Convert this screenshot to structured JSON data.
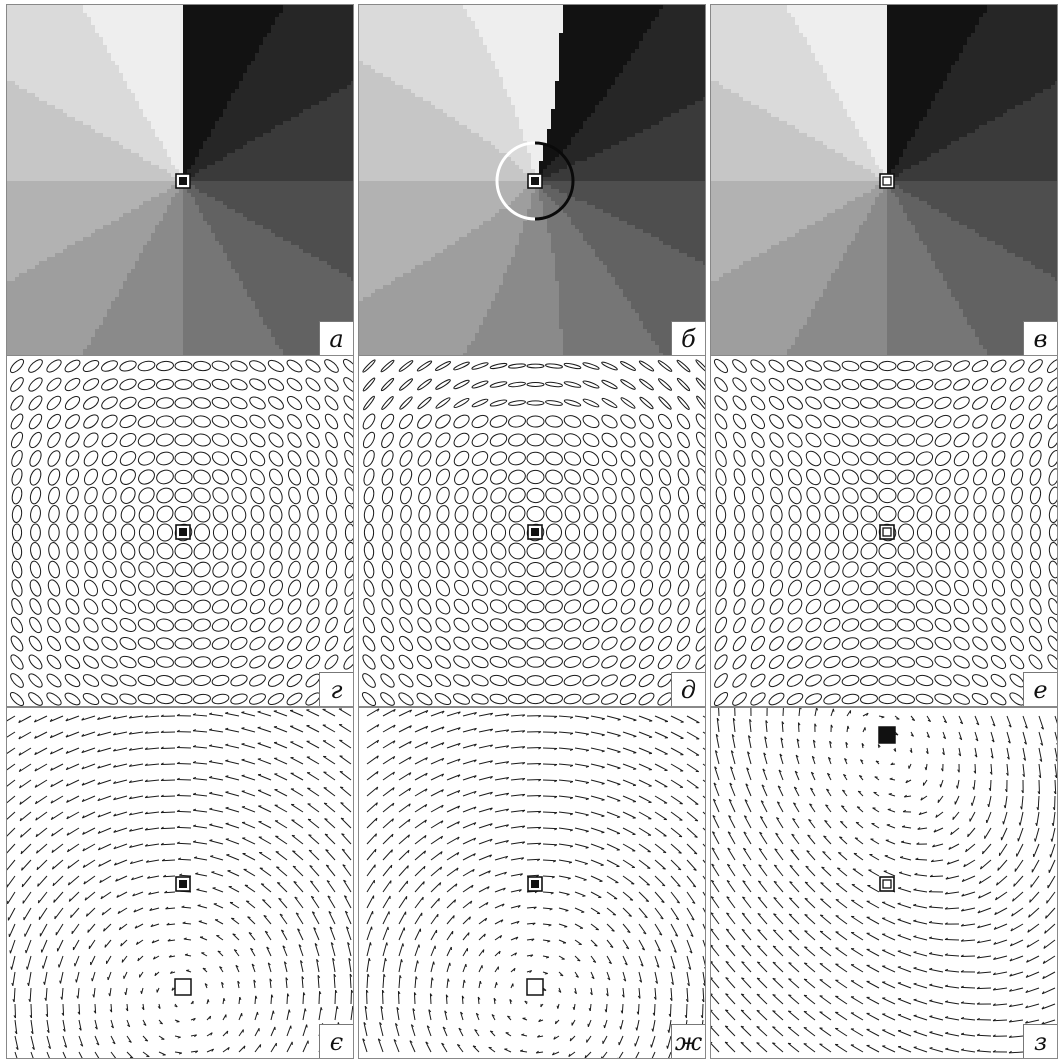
{
  "figure": {
    "panels": [
      {
        "id": "a",
        "label": "а",
        "kind": "phase",
        "variant": "a"
      },
      {
        "id": "b",
        "label": "б",
        "kind": "phase",
        "variant": "b"
      },
      {
        "id": "v",
        "label": "в",
        "kind": "phase",
        "variant": "v"
      },
      {
        "id": "g",
        "label": "г",
        "kind": "ellipse",
        "variant": "g"
      },
      {
        "id": "d",
        "label": "д",
        "kind": "ellipse",
        "variant": "d"
      },
      {
        "id": "e",
        "label": "е",
        "kind": "ellipse",
        "variant": "e"
      },
      {
        "id": "ye",
        "label": "є",
        "kind": "vector",
        "variant": "ye"
      },
      {
        "id": "zh",
        "label": "ж",
        "kind": "vector",
        "variant": "zh"
      },
      {
        "id": "z",
        "label": "з",
        "kind": "vector",
        "variant": "z"
      }
    ],
    "colors": {
      "background": "#ffffff",
      "ink": "#111111",
      "phase_dark": "#0a0a0a",
      "phase_light": "#f4f4f4"
    }
  }
}
